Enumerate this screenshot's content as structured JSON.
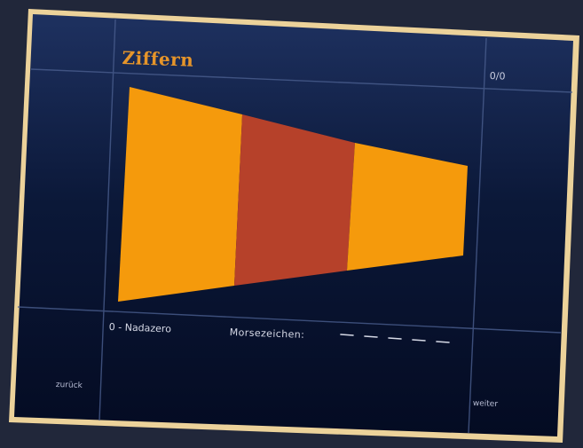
{
  "screen": {
    "title": "Ziffern",
    "counter": "0/0",
    "flag": {
      "caption": "0 - Nadazero",
      "stripe_colors": [
        "#f59a0c",
        "#b6412a",
        "#f59a0c"
      ]
    },
    "morse": {
      "label": "Morsezeichen:",
      "symbols": [
        "dash",
        "dash",
        "dash",
        "dash",
        "dash"
      ]
    },
    "nav": {
      "back_label": "zurück",
      "next_label": "weiter"
    }
  },
  "colors": {
    "frame": "#ecd29a",
    "background_top": "#1e3160",
    "background_bottom": "#040b22",
    "grid_line": "#4a5e8e",
    "title": "#e6952a",
    "text": "#d6d9e6"
  }
}
